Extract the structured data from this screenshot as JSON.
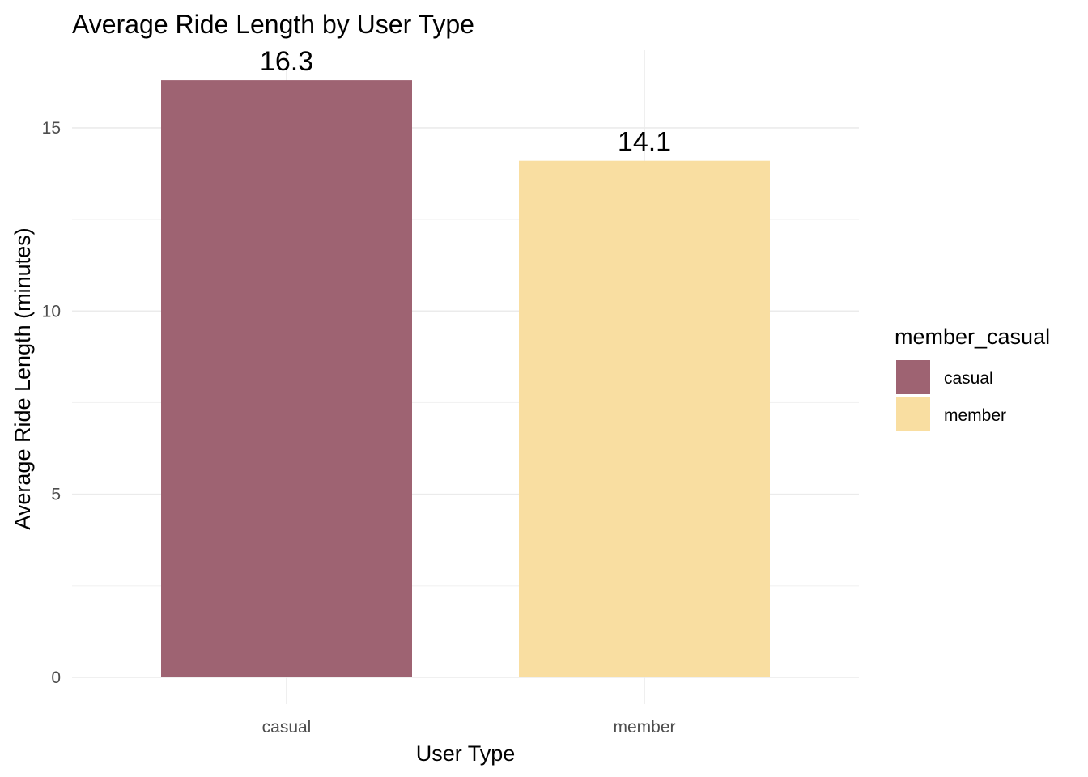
{
  "chart_data": {
    "type": "bar",
    "title": "Average Ride Length by User Type",
    "xlabel": "User Type",
    "ylabel": "Average Ride Length (minutes)",
    "categories": [
      "casual",
      "member"
    ],
    "values": [
      16.3,
      14.1
    ],
    "value_labels": [
      "16.3",
      "14.1"
    ],
    "colors": [
      "#9e6372",
      "#f9dea1"
    ],
    "ylim": [
      0,
      17.1
    ],
    "y_ticks": [
      0,
      5,
      10,
      15
    ],
    "y_tick_labels": [
      "0",
      "5",
      "10",
      "15"
    ],
    "grid": true,
    "legend": {
      "title": "member_casual",
      "position": "right",
      "entries": [
        "casual",
        "member"
      ]
    }
  }
}
